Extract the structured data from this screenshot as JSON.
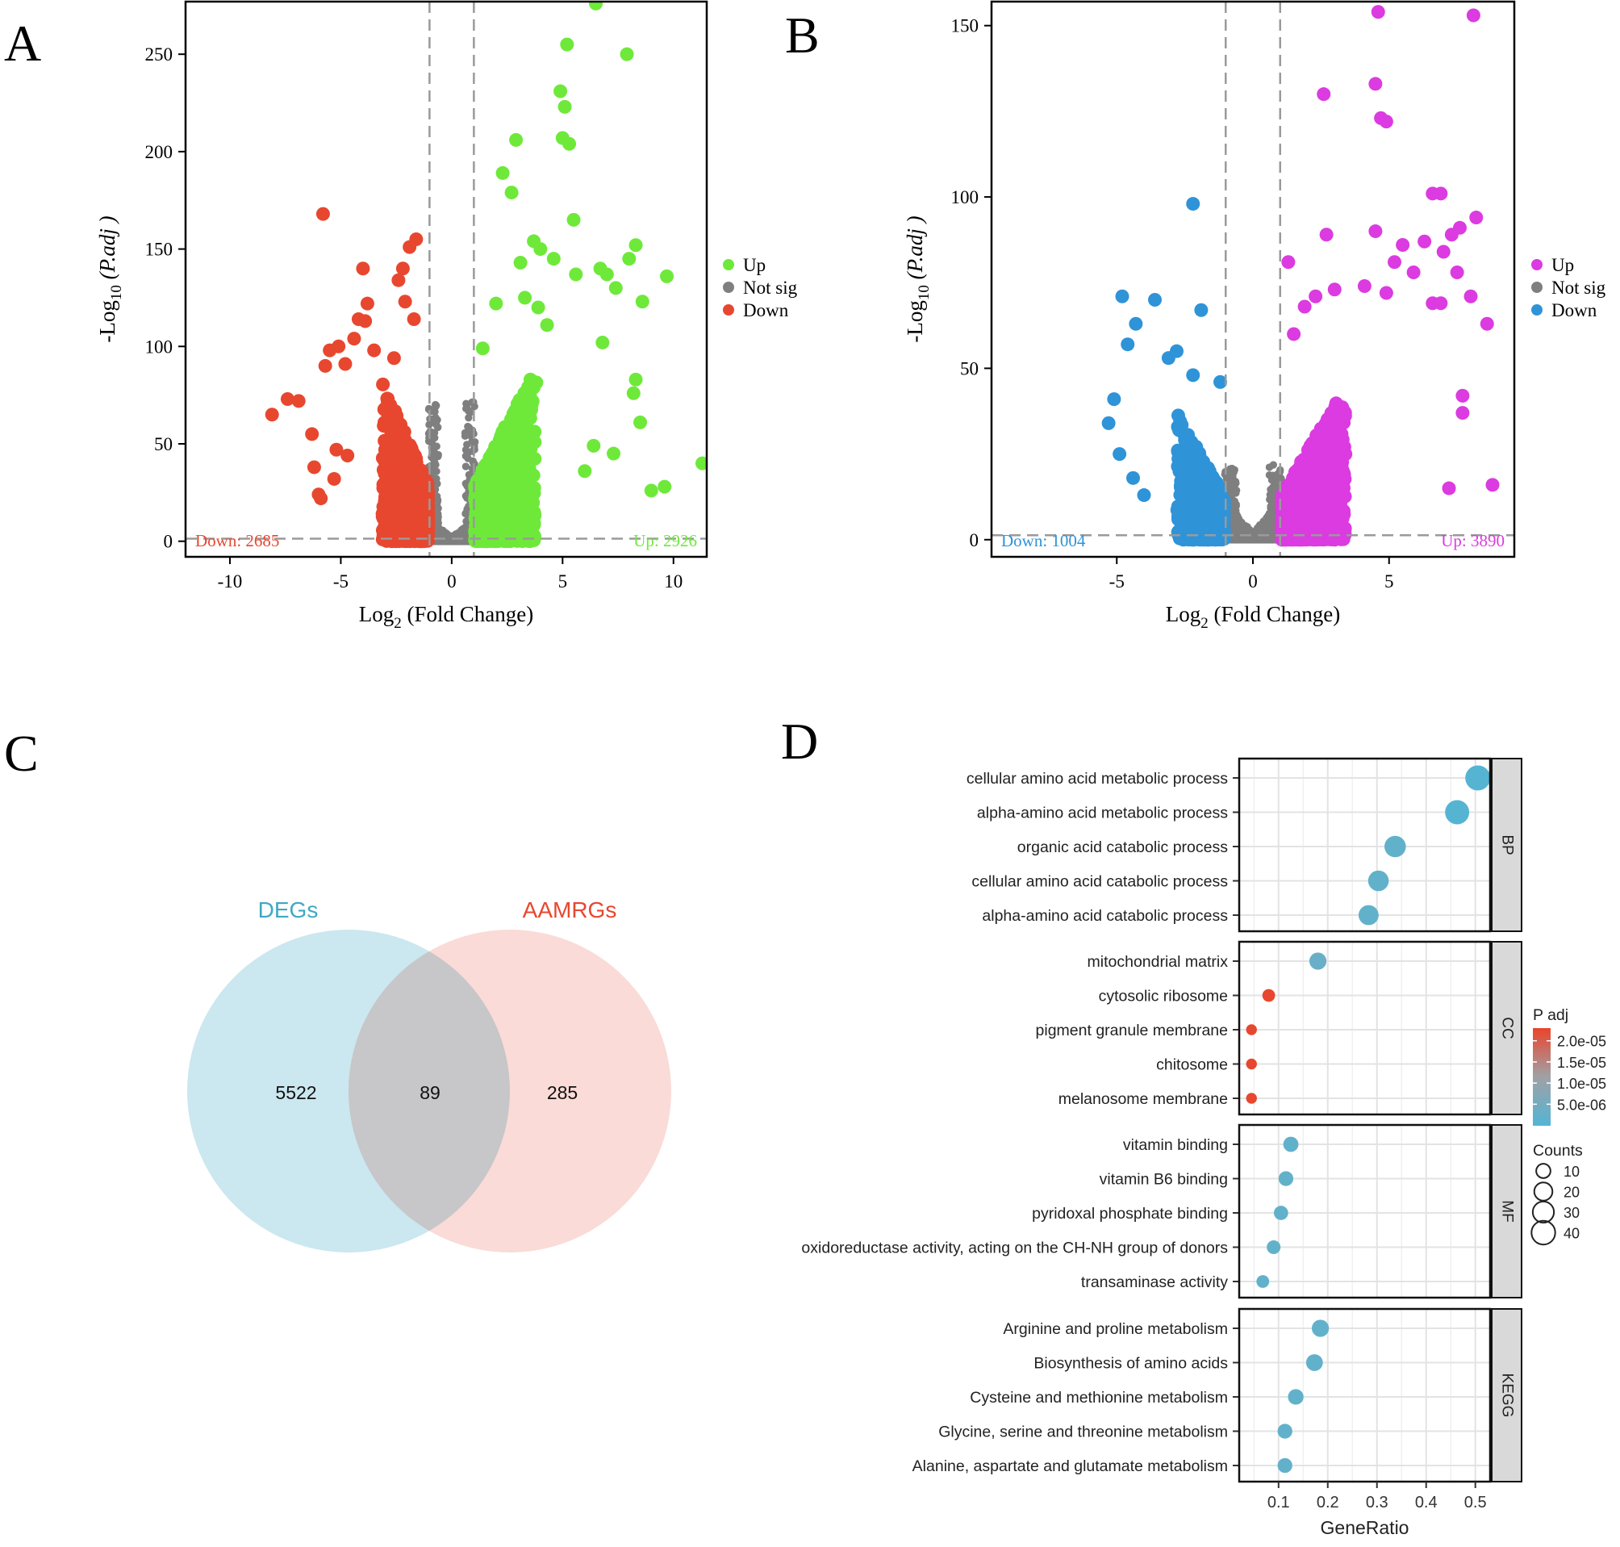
{
  "chart_data": [
    {
      "panel": "A",
      "type": "scatter",
      "subtype": "volcano",
      "xlabel": "Log",
      "xlabel_sub": "2",
      "xlabel_rest": " (Fold Change)",
      "ylabel": "-Log",
      "ylabel_sub": "10",
      "ylabel_rest": " (P.adj )",
      "xlim": [
        -12,
        11.5
      ],
      "ylim": [
        -8,
        277
      ],
      "xticks": [
        -10,
        -5,
        0,
        5,
        10
      ],
      "yticks": [
        0,
        50,
        100,
        150,
        200,
        250
      ],
      "fc_threshold": [
        -1,
        1
      ],
      "padj_threshold_log": 1.3,
      "legend": [
        {
          "label": "Up",
          "color": "#6ee93a"
        },
        {
          "label": "Not sig",
          "color": "#7f7f7f"
        },
        {
          "label": "Down",
          "color": "#e8472f"
        }
      ],
      "annotations": {
        "down": "Down: 2685",
        "up": "Up: 2926"
      },
      "counts": {
        "down": 2685,
        "up": 2926
      },
      "points": {
        "up": [
          [
            6.5,
            276
          ],
          [
            7.9,
            250
          ],
          [
            5.2,
            255
          ],
          [
            4.9,
            231
          ],
          [
            5.1,
            223
          ],
          [
            5.0,
            207
          ],
          [
            5.5,
            165
          ],
          [
            5.3,
            204
          ],
          [
            2.9,
            206
          ],
          [
            2.3,
            189
          ],
          [
            2.7,
            179
          ],
          [
            3.7,
            154
          ],
          [
            4.0,
            150
          ],
          [
            4.6,
            145
          ],
          [
            3.1,
            143
          ],
          [
            5.6,
            137
          ],
          [
            7.0,
            137
          ],
          [
            8.0,
            145
          ],
          [
            8.3,
            152
          ],
          [
            9.7,
            136
          ],
          [
            8.6,
            123
          ],
          [
            7.4,
            130
          ],
          [
            6.7,
            140
          ],
          [
            2.0,
            122
          ],
          [
            3.3,
            125
          ],
          [
            3.9,
            120
          ],
          [
            4.3,
            111
          ],
          [
            1.4,
            99
          ],
          [
            6.8,
            102
          ],
          [
            8.3,
            83
          ],
          [
            8.2,
            76
          ],
          [
            9.0,
            26
          ],
          [
            9.6,
            28
          ],
          [
            11.3,
            40
          ],
          [
            8.5,
            61
          ],
          [
            7.3,
            45
          ],
          [
            6.4,
            49
          ],
          [
            6.0,
            36
          ],
          [
            3.5,
            17
          ]
        ],
        "down": [
          [
            -5.8,
            168
          ],
          [
            -1.6,
            155
          ],
          [
            -1.9,
            151
          ],
          [
            -2.2,
            140
          ],
          [
            -2.4,
            134
          ],
          [
            -4.0,
            140
          ],
          [
            -2.1,
            123
          ],
          [
            -3.8,
            122
          ],
          [
            -3.9,
            113
          ],
          [
            -4.2,
            114
          ],
          [
            -1.7,
            114
          ],
          [
            -4.4,
            104
          ],
          [
            -5.1,
            100
          ],
          [
            -5.5,
            98
          ],
          [
            -3.5,
            98
          ],
          [
            -2.6,
            94
          ],
          [
            -4.8,
            91
          ],
          [
            -5.7,
            90
          ],
          [
            -7.4,
            73
          ],
          [
            -6.9,
            72
          ],
          [
            -8.1,
            65
          ],
          [
            -6.3,
            55
          ],
          [
            -6.2,
            38
          ],
          [
            -5.9,
            22
          ],
          [
            -5.3,
            32
          ],
          [
            -6.0,
            24
          ],
          [
            -4.7,
            44
          ],
          [
            -5.2,
            47
          ]
        ]
      }
    },
    {
      "panel": "B",
      "type": "scatter",
      "subtype": "volcano",
      "xlabel": "Log",
      "xlabel_sub": "2",
      "xlabel_rest": " (Fold Change)",
      "ylabel": "-Log",
      "ylabel_sub": "10",
      "ylabel_rest": " (P.adj )",
      "xlim": [
        -9.6,
        9.6
      ],
      "ylim": [
        -5,
        157
      ],
      "xticks": [
        -5,
        0,
        5
      ],
      "yticks": [
        0,
        50,
        100,
        150
      ],
      "fc_threshold": [
        -1,
        1
      ],
      "padj_threshold_log": 1.3,
      "legend": [
        {
          "label": "Up",
          "color": "#db3be0"
        },
        {
          "label": "Not sig",
          "color": "#7f7f7f"
        },
        {
          "label": "Down",
          "color": "#2f93d8"
        }
      ],
      "annotations": {
        "down": "Down: 1004",
        "up": "Up: 3890"
      },
      "counts": {
        "down": 1004,
        "up": 3890
      },
      "points": {
        "up": [
          [
            4.6,
            154
          ],
          [
            8.1,
            153
          ],
          [
            4.5,
            133
          ],
          [
            2.6,
            130
          ],
          [
            4.7,
            123
          ],
          [
            4.9,
            122
          ],
          [
            6.6,
            101
          ],
          [
            6.9,
            101
          ],
          [
            2.7,
            89
          ],
          [
            4.5,
            90
          ],
          [
            8.2,
            94
          ],
          [
            7.6,
            91
          ],
          [
            7.3,
            89
          ],
          [
            6.3,
            87
          ],
          [
            7.0,
            84
          ],
          [
            5.5,
            86
          ],
          [
            1.3,
            81
          ],
          [
            5.2,
            81
          ],
          [
            5.9,
            78
          ],
          [
            7.5,
            78
          ],
          [
            4.1,
            74
          ],
          [
            3.0,
            73
          ],
          [
            2.3,
            71
          ],
          [
            1.9,
            68
          ],
          [
            4.9,
            72
          ],
          [
            6.6,
            69
          ],
          [
            6.9,
            69
          ],
          [
            8.0,
            71
          ],
          [
            8.6,
            63
          ],
          [
            1.5,
            60
          ],
          [
            7.7,
            42
          ],
          [
            7.7,
            37
          ],
          [
            8.8,
            16
          ],
          [
            7.2,
            15
          ]
        ],
        "down": [
          [
            -2.2,
            98
          ],
          [
            -4.8,
            71
          ],
          [
            -3.6,
            70
          ],
          [
            -4.3,
            63
          ],
          [
            -4.6,
            57
          ],
          [
            -1.9,
            67
          ],
          [
            -3.1,
            53
          ],
          [
            -5.1,
            41
          ],
          [
            -5.3,
            34
          ],
          [
            -4.9,
            25
          ],
          [
            -4.4,
            18
          ],
          [
            -4.0,
            13
          ],
          [
            -2.8,
            55
          ],
          [
            -2.2,
            48
          ],
          [
            -1.2,
            46
          ]
        ]
      }
    },
    {
      "panel": "C",
      "type": "venn",
      "sets": [
        {
          "label": "DEGs",
          "color": "#3fa8c4",
          "fill": "#c8e6ee",
          "only": "5522"
        },
        {
          "label": "AAMRGs",
          "color": "#e8472f",
          "fill": "#f5bdb6",
          "only": "285"
        }
      ],
      "intersection": "89"
    },
    {
      "panel": "D",
      "type": "scatter",
      "subtype": "dot-enrichment",
      "xlabel": "GeneRatio",
      "xlim": [
        0.02,
        0.53
      ],
      "xticks": [
        0.1,
        0.2,
        0.3,
        0.4,
        0.5
      ],
      "facets": [
        {
          "name": "BP",
          "terms": [
            {
              "label": "cellular amino acid metabolic process",
              "ratio": 0.505,
              "count": 46,
              "padj": 1e-07
            },
            {
              "label": "alpha-amino acid metabolic process",
              "ratio": 0.463,
              "count": 42,
              "padj": 1e-07
            },
            {
              "label": "organic acid catabolic process",
              "ratio": 0.337,
              "count": 31,
              "padj": 2e-06
            },
            {
              "label": "cellular amino acid catabolic process",
              "ratio": 0.303,
              "count": 28,
              "padj": 2e-06
            },
            {
              "label": "alpha-amino acid catabolic process",
              "ratio": 0.283,
              "count": 26,
              "padj": 2e-06
            }
          ]
        },
        {
          "name": "CC",
          "terms": [
            {
              "label": "mitochondrial matrix",
              "ratio": 0.18,
              "count": 17,
              "padj": 3e-06
            },
            {
              "label": "cytosolic ribosome",
              "ratio": 0.08,
              "count": 7,
              "padj": 2.3e-05
            },
            {
              "label": "pigment granule membrane",
              "ratio": 0.045,
              "count": 4,
              "padj": 2.3e-05
            },
            {
              "label": "chitosome",
              "ratio": 0.045,
              "count": 4,
              "padj": 2.3e-05
            },
            {
              "label": "melanosome membrane",
              "ratio": 0.045,
              "count": 4,
              "padj": 2.3e-05
            }
          ]
        },
        {
          "name": "MF",
          "terms": [
            {
              "label": "vitamin binding",
              "ratio": 0.125,
              "count": 12,
              "padj": 2e-06
            },
            {
              "label": "vitamin B6 binding",
              "ratio": 0.115,
              "count": 11,
              "padj": 2e-06
            },
            {
              "label": "pyridoxal phosphate binding",
              "ratio": 0.105,
              "count": 10,
              "padj": 2e-06
            },
            {
              "label": "oxidoreductase activity, acting on the CH-NH group of donors",
              "ratio": 0.09,
              "count": 9,
              "padj": 2e-06
            },
            {
              "label": "transaminase activity",
              "ratio": 0.068,
              "count": 7,
              "padj": 2e-06
            }
          ]
        },
        {
          "name": "KEGG",
          "terms": [
            {
              "label": "Arginine and proline metabolism",
              "ratio": 0.185,
              "count": 17,
              "padj": 2e-06
            },
            {
              "label": "Biosynthesis of amino acids",
              "ratio": 0.173,
              "count": 16,
              "padj": 2e-06
            },
            {
              "label": "Cysteine and methionine metabolism",
              "ratio": 0.135,
              "count": 13,
              "padj": 2e-06
            },
            {
              "label": "Glycine, serine and threonine metabolism",
              "ratio": 0.113,
              "count": 11,
              "padj": 2e-06
            },
            {
              "label": "Alanine, aspartate and glutamate metabolism",
              "ratio": 0.113,
              "count": 11,
              "padj": 2e-06
            }
          ]
        }
      ],
      "colorbar": {
        "title": "P adj",
        "range": [
          1e-07,
          2.3e-05
        ],
        "ticks": [
          {
            "v": 2e-05,
            "label": "2.0e-05"
          },
          {
            "v": 1.5e-05,
            "label": "1.5e-05"
          },
          {
            "v": 1e-05,
            "label": "1.0e-05"
          },
          {
            "v": 5e-06,
            "label": "5.0e-06"
          }
        ],
        "low_color": "#56b4d3",
        "high_color": "#e8472f"
      },
      "size_legend": {
        "title": "Counts",
        "values": [
          10,
          20,
          30,
          40
        ]
      }
    }
  ],
  "panel_labels": [
    "A",
    "B",
    "C",
    "D"
  ]
}
